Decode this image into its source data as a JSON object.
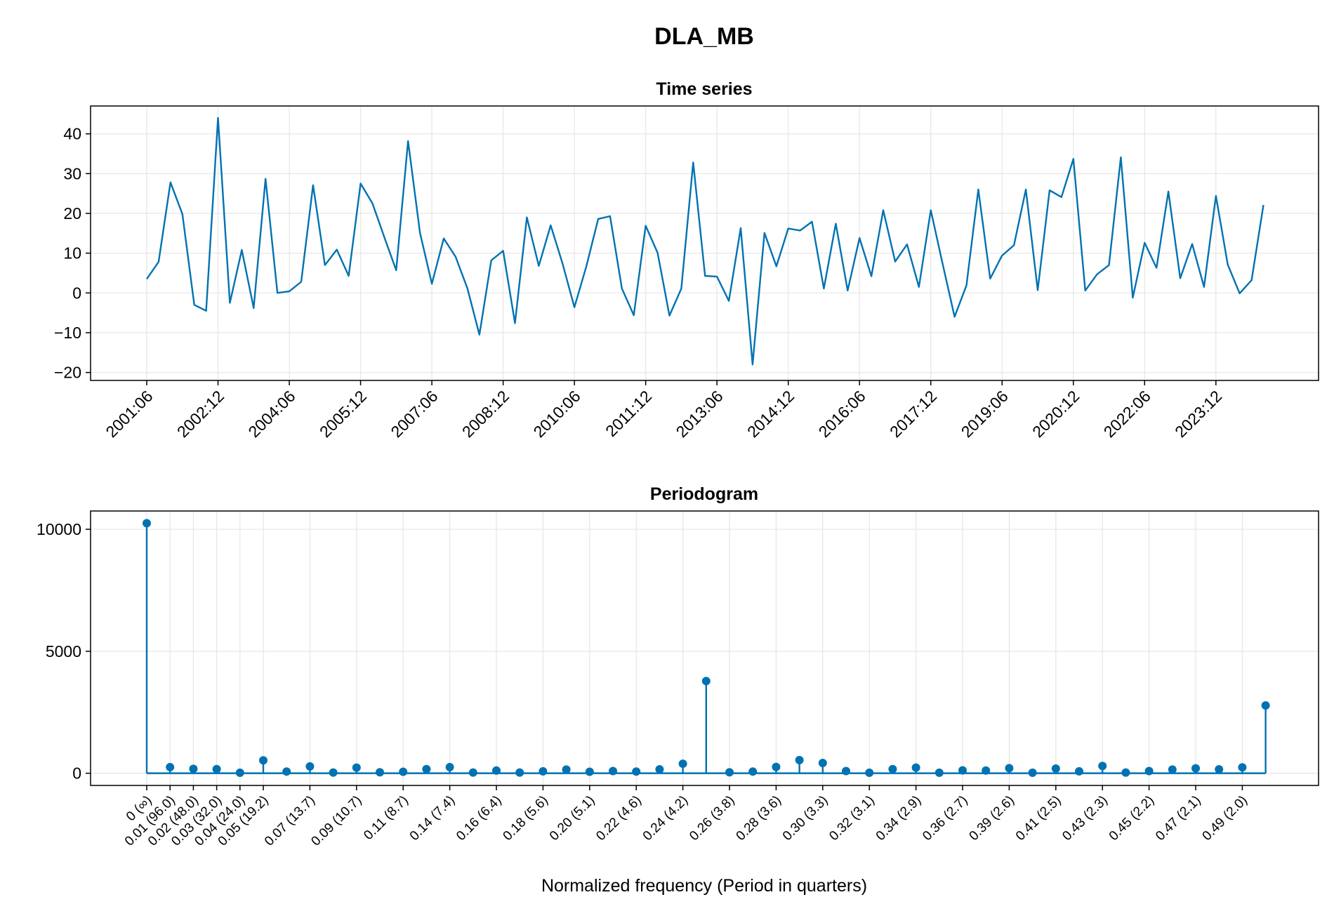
{
  "figure_title": "DLA_MB",
  "colors": {
    "series": "#0072b2",
    "grid": "#e6e6e6",
    "frame": "#000000"
  },
  "chart_data": [
    {
      "type": "line",
      "title": "Time series",
      "x_tick_labels": [
        "2001:06",
        "2002:12",
        "2004:06",
        "2005:12",
        "2007:06",
        "2008:12",
        "2010:06",
        "2011:12",
        "2013:06",
        "2014:12",
        "2016:06",
        "2017:12",
        "2019:06",
        "2020:12",
        "2022:06",
        "2023:12"
      ],
      "y_ticks": [
        -20,
        -10,
        0,
        10,
        20,
        30,
        40
      ],
      "ylim": [
        -22,
        47
      ],
      "x_start": "2001:06",
      "x_frequency": "quarterly",
      "values": [
        3.5,
        7.8,
        27.8,
        19.8,
        -3.0,
        -4.5,
        44.0,
        -2.5,
        10.8,
        -3.8,
        28.7,
        0.0,
        0.4,
        2.8,
        27.1,
        7.0,
        10.9,
        4.3,
        27.5,
        22.5,
        14.0,
        5.7,
        38.2,
        15.1,
        2.3,
        13.7,
        9.1,
        1.1,
        -10.5,
        8.2,
        10.6,
        -7.6,
        19.0,
        6.8,
        17.0,
        7.4,
        -3.6,
        6.6,
        18.6,
        19.3,
        1.1,
        -5.6,
        16.9,
        10.1,
        -5.7,
        1.1,
        32.8,
        4.3,
        4.1,
        -2.0,
        16.3,
        -18.0,
        15.1,
        6.7,
        16.2,
        15.7,
        17.9,
        1.1,
        17.4,
        0.6,
        13.8,
        4.2,
        20.8,
        7.9,
        12.2,
        1.5,
        20.8,
        7.3,
        -6.0,
        1.9,
        26.0,
        3.6,
        9.4,
        12.0,
        26.0,
        0.7,
        25.8,
        24.1,
        33.7,
        0.6,
        4.7,
        7.0,
        34.1,
        -1.2,
        12.6,
        6.3,
        25.5,
        3.7,
        12.3,
        1.5,
        24.4,
        7.1,
        -0.1,
        3.2,
        22.1
      ]
    },
    {
      "type": "stem",
      "title": "Periodogram",
      "xlabel": "Normalized frequency (Period in quarters)",
      "x_tick_labels": [
        "0 (∞)",
        "0.01 (96.0)",
        "0.02 (48.0)",
        "0.03 (32.0)",
        "0.04 (24.0)",
        "0.05 (19.2)",
        "0.07 (13.7)",
        "0.09 (10.7)",
        "0.11 (8.7)",
        "0.14 (7.4)",
        "0.16 (6.4)",
        "0.18 (5.6)",
        "0.20 (5.1)",
        "0.22 (4.6)",
        "0.24 (4.2)",
        "0.26 (3.8)",
        "0.28 (3.6)",
        "0.30 (3.3)",
        "0.32 (3.1)",
        "0.34 (2.9)",
        "0.36 (2.7)",
        "0.39 (2.6)",
        "0.41 (2.5)",
        "0.43 (2.3)",
        "0.45 (2.2)",
        "0.47 (2.1)",
        "0.49 (2.0)"
      ],
      "x_tick_indices": [
        0,
        1,
        2,
        3,
        4,
        5,
        7,
        9,
        11,
        13,
        15,
        17,
        19,
        21,
        23,
        25,
        27,
        29,
        31,
        33,
        35,
        37,
        39,
        41,
        43,
        45,
        47
      ],
      "y_ticks": [
        0,
        5000,
        10000
      ],
      "ylim": [
        -500,
        10750
      ],
      "values": [
        10250,
        250,
        180,
        170,
        20,
        530,
        70,
        280,
        30,
        230,
        40,
        60,
        170,
        250,
        30,
        110,
        30,
        80,
        150,
        60,
        90,
        70,
        160,
        390,
        3780,
        40,
        70,
        260,
        540,
        420,
        90,
        20,
        170,
        230,
        20,
        120,
        110,
        210,
        20,
        190,
        80,
        300,
        30,
        90,
        150,
        200,
        160,
        240,
        2780
      ]
    }
  ]
}
